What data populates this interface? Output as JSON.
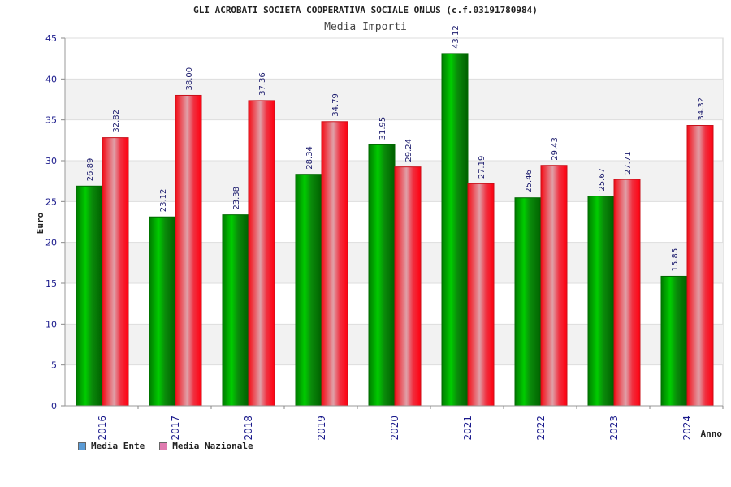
{
  "header": {
    "title": "GLI ACROBATI SOCIETA COOPERATIVA SOCIALE ONLUS (c.f.03191780984)",
    "subtitle": "Media Importi"
  },
  "colors": {
    "ente": "#00b000",
    "nazionale": "#ee1c24",
    "legend_ente": "#5b9bd5",
    "legend_nazionale": "#e07bb0"
  },
  "legend": {
    "items": [
      {
        "label": "Media Ente"
      },
      {
        "label": "Media Nazionale"
      }
    ]
  },
  "chart_data": {
    "type": "bar",
    "title": "GLI ACROBATI SOCIETA COOPERATIVA SOCIALE ONLUS (c.f.03191780984)",
    "subtitle": "Media Importi",
    "xlabel": "Anno",
    "ylabel": "Euro",
    "categories": [
      "2016",
      "2017",
      "2018",
      "2019",
      "2020",
      "2021",
      "2022",
      "2023",
      "2024"
    ],
    "series": [
      {
        "name": "Media Ente",
        "values": [
          26.89,
          23.12,
          23.38,
          28.34,
          31.95,
          43.12,
          25.46,
          25.67,
          15.85
        ]
      },
      {
        "name": "Media Nazionale",
        "values": [
          32.82,
          38.0,
          37.36,
          34.79,
          29.24,
          27.19,
          29.43,
          27.71,
          34.32
        ]
      }
    ],
    "value_labels": {
      "ente": [
        "26.89",
        "23.12",
        "23.38",
        "28.34",
        "31.95",
        "43.12",
        "25.46",
        "25.67",
        "15.85"
      ],
      "nazionale": [
        "32.82",
        "38.00",
        "37.36",
        "34.79",
        "29.24",
        "27.19",
        "29.43",
        "27.71",
        "34.32"
      ]
    },
    "yticks": [
      "0",
      "5",
      "10",
      "15",
      "20",
      "25",
      "30",
      "35",
      "40",
      "45"
    ],
    "ylim": [
      0,
      45
    ],
    "grid": true,
    "legend_position": "bottom-left"
  }
}
